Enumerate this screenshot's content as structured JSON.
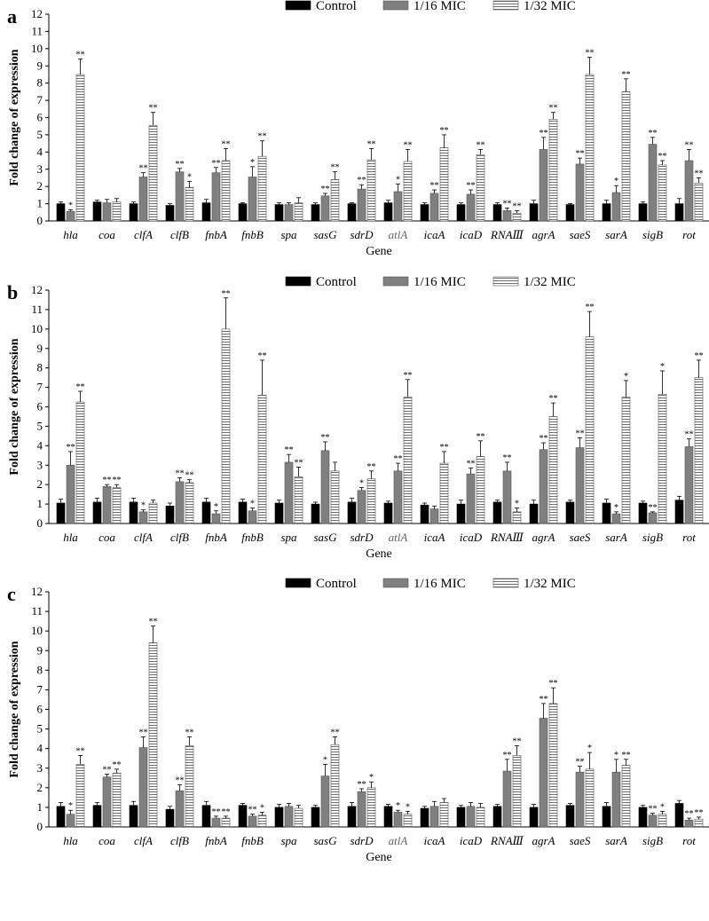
{
  "colors": {
    "control": "#000000",
    "mic16": "#808080",
    "mic32_fill": "#ffffff",
    "mic32_hatch": "#707070",
    "axis": "#000000"
  },
  "chart_data": [
    {
      "type": "bar",
      "panel": "a",
      "ylabel": "Fold change of expression",
      "xlabel": "Gene",
      "ylim": [
        0,
        12
      ],
      "yticks": [
        0,
        1,
        2,
        3,
        4,
        5,
        6,
        7,
        8,
        9,
        10,
        11,
        12
      ],
      "legend_position": "top-right",
      "categories": [
        "hla",
        "coa",
        "clfA",
        "clfB",
        "fnbA",
        "fnbB",
        "spa",
        "sasG",
        "sdrD",
        "atlA",
        "icaA",
        "icaD",
        "RNAⅢ",
        "agrA",
        "saeS",
        "sarA",
        "sigB",
        "rot"
      ],
      "series": [
        {
          "name": "Control",
          "values": [
            1,
            1.1,
            1,
            0.9,
            1.05,
            1,
            0.95,
            0.95,
            1,
            1.05,
            0.95,
            0.95,
            0.95,
            1,
            0.95,
            1,
            1,
            1
          ],
          "errors": [
            0.1,
            0.1,
            0.1,
            0.1,
            0.2,
            0.05,
            0.1,
            0.1,
            0.05,
            0.15,
            0.1,
            0.1,
            0.1,
            0.2,
            0.05,
            0.2,
            0.1,
            0.3
          ],
          "sig": [
            "",
            "",
            "",
            "",
            "",
            "",
            "",
            "",
            "",
            "",
            "",
            "",
            "",
            "",
            "",
            "",
            "",
            ""
          ]
        },
        {
          "name": "1/16 MIC",
          "values": [
            0.55,
            1.05,
            2.55,
            2.85,
            2.8,
            2.55,
            0.95,
            1.45,
            1.85,
            1.7,
            1.6,
            1.55,
            0.6,
            4.15,
            3.3,
            1.65,
            4.45,
            3.5
          ],
          "errors": [
            0.1,
            0.2,
            0.25,
            0.2,
            0.3,
            0.6,
            0.1,
            0.15,
            0.25,
            0.45,
            0.2,
            0.25,
            0.15,
            0.7,
            0.35,
            0.4,
            0.4,
            0.65
          ],
          "sig": [
            "*",
            "",
            "**",
            "**",
            "**",
            "*",
            "",
            "**",
            "**",
            "*",
            "**",
            "**",
            "**",
            "**",
            "**",
            "*",
            "**",
            "**"
          ]
        },
        {
          "name": "1/32 MIC",
          "values": [
            8.5,
            1.1,
            5.55,
            1.95,
            3.5,
            3.75,
            1.05,
            2.4,
            3.55,
            3.45,
            4.25,
            3.85,
            0.45,
            5.9,
            8.5,
            7.5,
            3.25,
            2.2
          ],
          "errors": [
            0.9,
            0.2,
            0.75,
            0.35,
            0.7,
            0.9,
            0.3,
            0.45,
            0.65,
            0.7,
            0.75,
            0.3,
            0.15,
            0.4,
            1.0,
            0.75,
            0.25,
            0.3
          ],
          "sig": [
            "**",
            "",
            "**",
            "*",
            "**",
            "**",
            "",
            "**",
            "**",
            "**",
            "**",
            "**",
            "**",
            "**",
            "**",
            "**",
            "**",
            "**"
          ]
        }
      ]
    },
    {
      "type": "bar",
      "panel": "b",
      "ylabel": "Fold change of expression",
      "xlabel": "Gene",
      "ylim": [
        0,
        12
      ],
      "yticks": [
        0,
        1,
        2,
        3,
        4,
        5,
        6,
        7,
        8,
        9,
        10,
        11,
        12
      ],
      "legend_position": "top-right",
      "categories": [
        "hla",
        "coa",
        "clfA",
        "clfB",
        "fnbA",
        "fnbB",
        "spa",
        "sasG",
        "sdrD",
        "atlA",
        "icaA",
        "icaD",
        "RNAⅢ",
        "agrA",
        "saeS",
        "sarA",
        "sigB",
        "rot"
      ],
      "series": [
        {
          "name": "Control",
          "values": [
            1.05,
            1.1,
            1.1,
            0.9,
            1.1,
            1.1,
            1.05,
            1,
            1.1,
            1.05,
            0.95,
            1,
            1.1,
            1,
            1.1,
            1.05,
            1.05,
            1.2
          ],
          "errors": [
            0.2,
            0.2,
            0.2,
            0.15,
            0.2,
            0.15,
            0.15,
            0.1,
            0.2,
            0.1,
            0.1,
            0.2,
            0.1,
            0.2,
            0.1,
            0.2,
            0.1,
            0.2
          ],
          "sig": [
            "",
            "",
            "",
            "",
            "",
            "",
            "",
            "",
            "",
            "",
            "",
            "",
            "",
            "",
            "",
            "",
            "",
            ""
          ]
        },
        {
          "name": "1/16 MIC",
          "values": [
            3,
            1.9,
            0.6,
            2.15,
            0.5,
            0.65,
            3.15,
            3.75,
            1.7,
            2.7,
            0.75,
            2.55,
            2.7,
            3.8,
            3.9,
            0.5,
            0.55,
            3.95
          ],
          "errors": [
            0.7,
            0.1,
            0.1,
            0.2,
            0.15,
            0.15,
            0.4,
            0.45,
            0.15,
            0.4,
            0.15,
            0.3,
            0.45,
            0.35,
            0.5,
            0.1,
            0.05,
            0.4
          ],
          "sig": [
            "**",
            "**",
            "*",
            "**",
            "*",
            "*",
            "**",
            "**",
            "*",
            "**",
            "",
            "**",
            "**",
            "**",
            "**",
            "*",
            "**",
            "**"
          ]
        },
        {
          "name": "1/32 MIC",
          "values": [
            6.25,
            1.85,
            1.05,
            2.1,
            10,
            6.6,
            2.4,
            2.7,
            2.3,
            6.5,
            3.1,
            3.45,
            0.6,
            5.5,
            9.6,
            6.5,
            6.65,
            7.5
          ],
          "errors": [
            0.55,
            0.15,
            0.15,
            0.15,
            1.6,
            1.8,
            0.5,
            0.45,
            0.4,
            0.9,
            0.6,
            0.8,
            0.2,
            0.7,
            1.3,
            0.85,
            1.2,
            0.9
          ],
          "sig": [
            "**",
            "**",
            "",
            "**",
            "**",
            "**",
            "**",
            "",
            "**",
            "**",
            "**",
            "**",
            "*",
            "**",
            "**",
            "*",
            "*",
            "**"
          ]
        }
      ]
    },
    {
      "type": "bar",
      "panel": "c",
      "ylabel": "Fold change of expression",
      "xlabel": "Gene",
      "ylim": [
        0,
        12
      ],
      "yticks": [
        0,
        1,
        2,
        3,
        4,
        5,
        6,
        7,
        8,
        9,
        10,
        11,
        12
      ],
      "legend_position": "top-right",
      "categories": [
        "hla",
        "coa",
        "clfA",
        "clfB",
        "fnbA",
        "fnbB",
        "spa",
        "sasG",
        "sdrD",
        "atlA",
        "icaA",
        "icaD",
        "RNAⅢ",
        "agrA",
        "saeS",
        "sarA",
        "sigB",
        "rot"
      ],
      "series": [
        {
          "name": "Control",
          "values": [
            1.05,
            1.1,
            1.1,
            0.9,
            1.1,
            1.1,
            1,
            1,
            1.05,
            1.05,
            0.95,
            1,
            1.05,
            1,
            1.1,
            1.05,
            1,
            1.2
          ],
          "errors": [
            0.2,
            0.15,
            0.2,
            0.15,
            0.2,
            0.1,
            0.15,
            0.1,
            0.2,
            0.1,
            0.1,
            0.1,
            0.1,
            0.15,
            0.1,
            0.2,
            0.1,
            0.15
          ],
          "sig": [
            "",
            "",
            "",
            "",
            "",
            "",
            "",
            "",
            "",
            "",
            "",
            "",
            "",
            "",
            "",
            "",
            "",
            ""
          ]
        },
        {
          "name": "1/16 MIC",
          "values": [
            0.65,
            2.55,
            4.05,
            1.85,
            0.45,
            0.55,
            1.05,
            2.6,
            1.8,
            0.75,
            1.05,
            1.05,
            2.85,
            5.55,
            2.8,
            2.8,
            0.6,
            0.35
          ],
          "errors": [
            0.2,
            0.15,
            0.55,
            0.3,
            0.1,
            0.1,
            0.15,
            0.6,
            0.15,
            0.1,
            0.25,
            0.2,
            0.6,
            0.75,
            0.3,
            0.65,
            0.1,
            0.1
          ],
          "sig": [
            "*",
            "**",
            "**",
            "**",
            "**",
            "**",
            "",
            "*",
            "**",
            "*",
            "",
            "",
            "**",
            "**",
            "**",
            "*",
            "**",
            "**"
          ]
        },
        {
          "name": "1/32 MIC",
          "values": [
            3.2,
            2.75,
            9.4,
            4.15,
            0.45,
            0.6,
            0.95,
            4.2,
            2,
            0.65,
            1.25,
            1,
            3.65,
            6.3,
            2.95,
            3.15,
            0.65,
            0.4
          ],
          "errors": [
            0.45,
            0.2,
            0.85,
            0.45,
            0.1,
            0.15,
            0.15,
            0.4,
            0.3,
            0.15,
            0.2,
            0.2,
            0.5,
            0.8,
            0.85,
            0.3,
            0.15,
            0.1
          ],
          "sig": [
            "**",
            "**",
            "**",
            "**",
            "**",
            "*",
            "",
            "**",
            "*",
            "*",
            "",
            "",
            "**",
            "**",
            "*",
            "**",
            "*",
            "**"
          ]
        }
      ]
    }
  ]
}
